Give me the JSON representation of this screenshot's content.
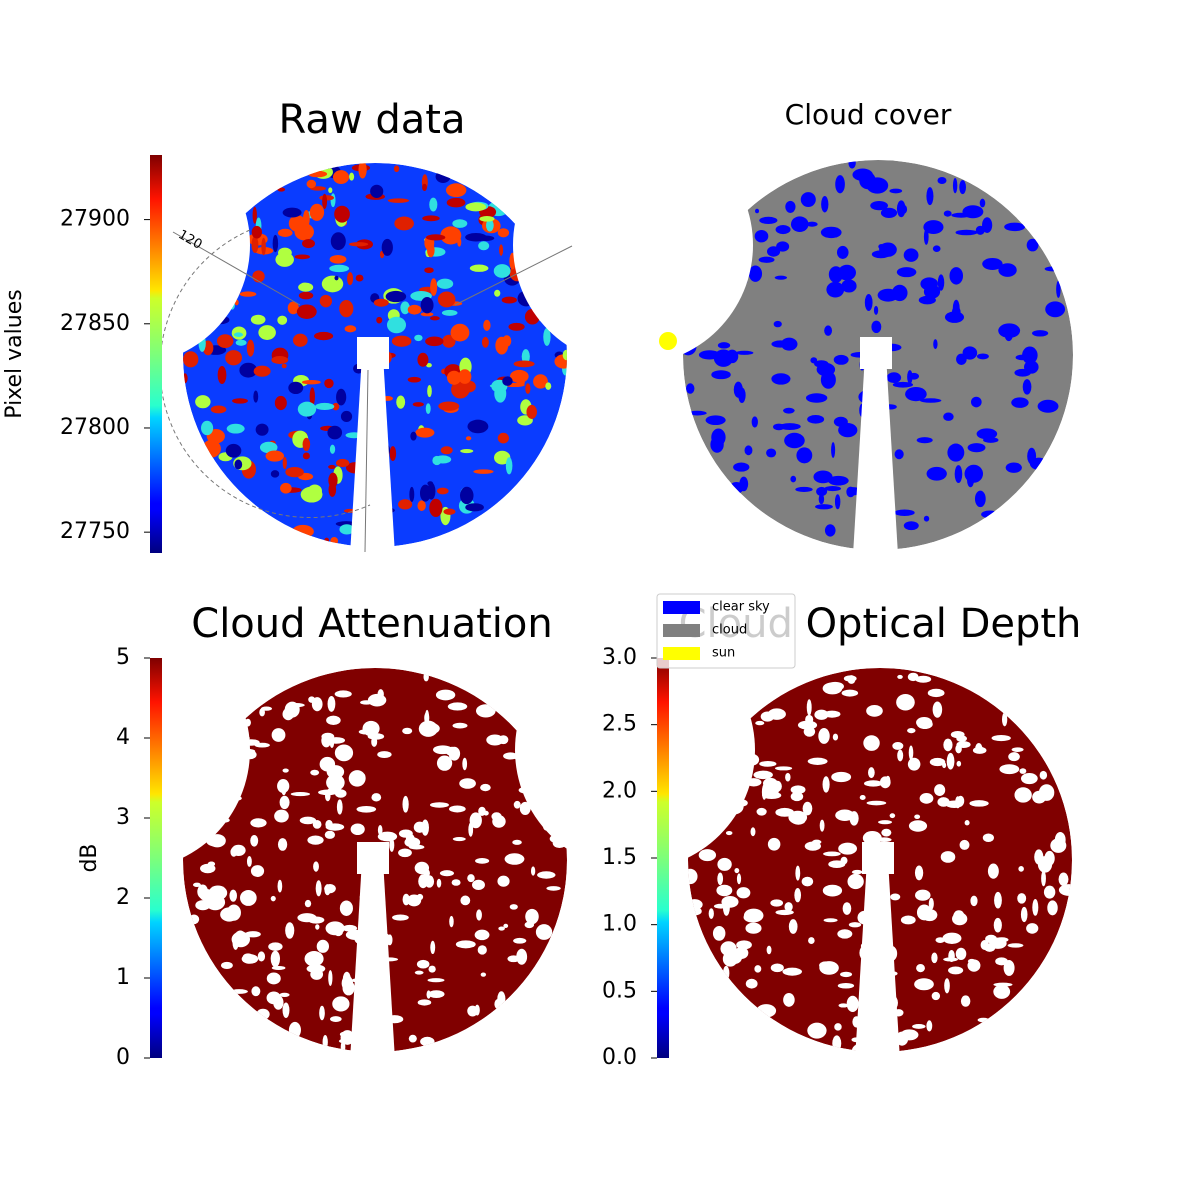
{
  "chart_data": [
    {
      "type": "image",
      "title": "Raw data",
      "annotations": [
        "120"
      ],
      "colorbar": {
        "label": "Pixel values",
        "colormap": "jet",
        "lim": [
          27740,
          27931
        ],
        "ticks": [
          27750,
          27800,
          27850,
          27900
        ]
      }
    },
    {
      "type": "image",
      "title": "Cloud cover",
      "legend": {
        "entries": [
          {
            "name": "clear sky",
            "color": "#0000ff"
          },
          {
            "name": "cloud",
            "color": "#808080"
          },
          {
            "name": "sun",
            "color": "#ffff00"
          }
        ]
      }
    },
    {
      "type": "image",
      "title": "Cloud Attenuation",
      "colorbar": {
        "label": "dB",
        "colormap": "jet",
        "lim": [
          0,
          5
        ],
        "ticks": [
          0,
          1,
          2,
          3,
          4,
          5
        ]
      }
    },
    {
      "type": "image",
      "title": "Cloud Optical Depth",
      "colorbar": {
        "colormap": "jet",
        "lim": [
          0,
          3
        ],
        "ticks": [
          {
            "value": 0,
            "label": "0.0"
          },
          {
            "value": 0.5,
            "label": "0.5"
          },
          {
            "value": 1,
            "label": "1.0"
          },
          {
            "value": 1.5,
            "label": "1.5"
          },
          {
            "value": 2,
            "label": "2.0"
          },
          {
            "value": 2.5,
            "label": "2.5"
          },
          {
            "value": 3,
            "label": "3.0"
          }
        ]
      }
    }
  ]
}
